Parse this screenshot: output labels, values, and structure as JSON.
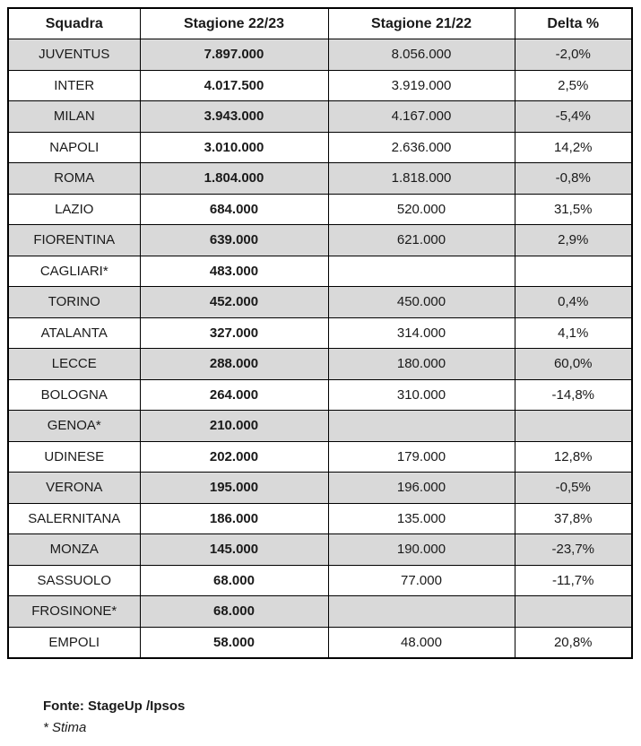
{
  "table": {
    "columns": [
      "Squadra",
      "Stagione 22/23",
      "Stagione 21/22",
      "Delta %"
    ],
    "rows": [
      {
        "squadra": "JUVENTUS",
        "s2223": "7.897.000",
        "s2122": "8.056.000",
        "delta": "-2,0%"
      },
      {
        "squadra": "INTER",
        "s2223": "4.017.500",
        "s2122": "3.919.000",
        "delta": "2,5%"
      },
      {
        "squadra": "MILAN",
        "s2223": "3.943.000",
        "s2122": "4.167.000",
        "delta": "-5,4%"
      },
      {
        "squadra": "NAPOLI",
        "s2223": "3.010.000",
        "s2122": "2.636.000",
        "delta": "14,2%"
      },
      {
        "squadra": "ROMA",
        "s2223": "1.804.000",
        "s2122": "1.818.000",
        "delta": "-0,8%"
      },
      {
        "squadra": "LAZIO",
        "s2223": "684.000",
        "s2122": "520.000",
        "delta": "31,5%"
      },
      {
        "squadra": "FIORENTINA",
        "s2223": "639.000",
        "s2122": "621.000",
        "delta": "2,9%"
      },
      {
        "squadra": "CAGLIARI*",
        "s2223": "483.000",
        "s2122": "",
        "delta": ""
      },
      {
        "squadra": "TORINO",
        "s2223": "452.000",
        "s2122": "450.000",
        "delta": "0,4%"
      },
      {
        "squadra": "ATALANTA",
        "s2223": "327.000",
        "s2122": "314.000",
        "delta": "4,1%"
      },
      {
        "squadra": "LECCE",
        "s2223": "288.000",
        "s2122": "180.000",
        "delta": "60,0%"
      },
      {
        "squadra": "BOLOGNA",
        "s2223": "264.000",
        "s2122": "310.000",
        "delta": "-14,8%"
      },
      {
        "squadra": "GENOA*",
        "s2223": "210.000",
        "s2122": "",
        "delta": ""
      },
      {
        "squadra": "UDINESE",
        "s2223": "202.000",
        "s2122": "179.000",
        "delta": "12,8%"
      },
      {
        "squadra": "VERONA",
        "s2223": "195.000",
        "s2122": "196.000",
        "delta": "-0,5%"
      },
      {
        "squadra": "SALERNITANA",
        "s2223": "186.000",
        "s2122": "135.000",
        "delta": "37,8%"
      },
      {
        "squadra": "MONZA",
        "s2223": "145.000",
        "s2122": "190.000",
        "delta": "-23,7%"
      },
      {
        "squadra": "SASSUOLO",
        "s2223": "68.000",
        "s2122": "77.000",
        "delta": "-11,7%"
      },
      {
        "squadra": "FROSINONE*",
        "s2223": "68.000",
        "s2122": "",
        "delta": ""
      },
      {
        "squadra": "EMPOLI",
        "s2223": "58.000",
        "s2122": "48.000",
        "delta": "20,8%"
      }
    ]
  },
  "footer": {
    "fonte": "Fonte: StageUp /Ipsos",
    "stima": "* Stima"
  },
  "colors": {
    "row_shade": "#d9d9d9",
    "border": "#000000",
    "background": "#ffffff"
  }
}
